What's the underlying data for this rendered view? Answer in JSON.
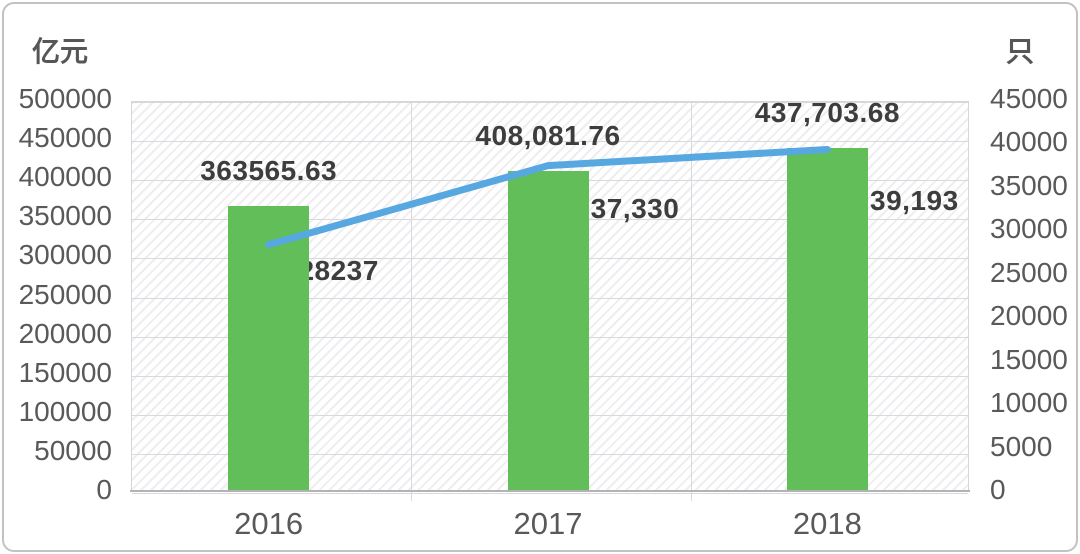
{
  "chart_data": {
    "type": "bar+line",
    "title": "",
    "categories": [
      "2016",
      "2017",
      "2018"
    ],
    "series": [
      {
        "name": "亿元",
        "type": "bar",
        "axis": "left",
        "values": [
          363565.63,
          408081.76,
          437703.68
        ],
        "labels": [
          "363565.63",
          "408,081.76",
          "437,703.68"
        ],
        "color": "#62be58"
      },
      {
        "name": "只",
        "type": "line",
        "axis": "right",
        "values": [
          28237,
          37330,
          39193
        ],
        "labels": [
          "28237",
          "37,330",
          "39,193"
        ],
        "color": "#57a7e0"
      }
    ],
    "left_axis": {
      "title": "亿元",
      "min": 0,
      "max": 500000,
      "step": 50000,
      "tick_labels": [
        "500000",
        "450000",
        "400000",
        "350000",
        "300000",
        "250000",
        "200000",
        "150000",
        "100000",
        "50000",
        "0"
      ]
    },
    "right_axis": {
      "title": "只",
      "min": 0,
      "max": 45000,
      "step": 5000,
      "tick_labels": [
        "45000",
        "40000",
        "35000",
        "30000",
        "25000",
        "20000",
        "15000",
        "10000",
        "5000",
        "0"
      ]
    },
    "grid": true,
    "legend_position": "none",
    "colors": {
      "bar": "#62be58",
      "line": "#57a7e0",
      "grid": "#d9d9db",
      "axis_line": "#b3b3b5",
      "tick_text": "#595959",
      "data_label_text": "#3d3d3d"
    }
  }
}
